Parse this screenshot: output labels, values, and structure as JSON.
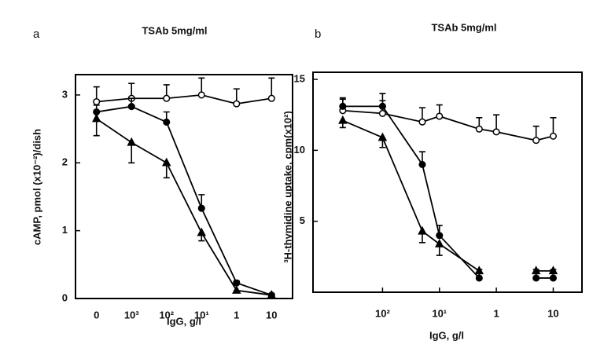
{
  "chart_data": [
    {
      "type": "line",
      "panel": "a",
      "title": "TSAb 5mg/ml",
      "x_label": "IgG, g/l",
      "y_label": "cAMP, pmol (x10⁻²)/dish",
      "categories": [
        "0",
        "10³",
        "10²",
        "10¹",
        "1",
        "10"
      ],
      "ylim": [
        0,
        3.3
      ],
      "yticks": [
        0,
        1,
        2,
        3
      ],
      "series": [
        {
          "marker": "open-circle",
          "color": "#000000",
          "error_side": "up",
          "values": [
            2.9,
            2.95,
            2.95,
            3.0,
            2.87,
            2.95
          ],
          "errors": [
            0.22,
            0.22,
            0.2,
            0.25,
            0.22,
            0.3
          ]
        },
        {
          "marker": "filled-circle",
          "color": "#000000",
          "error_side": "up",
          "values": [
            2.75,
            2.83,
            2.6,
            1.33,
            0.23,
            0.05
          ],
          "errors": [
            0.1,
            0.12,
            0.15,
            0.2,
            0.03,
            0.02
          ]
        },
        {
          "marker": "triangle",
          "color": "#000000",
          "error_side": "down",
          "values": [
            2.65,
            2.3,
            2.0,
            0.97,
            0.12,
            0.05
          ],
          "errors": [
            0.25,
            0.3,
            0.22,
            0.12,
            0.03,
            0.02
          ]
        }
      ]
    },
    {
      "type": "line",
      "panel": "b",
      "title": "TSAb 5mg/ml",
      "x_label": "IgG, g/l",
      "y_label": "³H-thymidine uptake, cpm(x10²)",
      "x": [
        0.002,
        0.01,
        0.05,
        0.1,
        0.5,
        1,
        5,
        10
      ],
      "log_x": true,
      "xlim": [
        0.0006,
        32
      ],
      "xticks": [
        {
          "value": 0.01,
          "label": "10²"
        },
        {
          "value": 0.1,
          "label": "10¹"
        },
        1,
        10
      ],
      "ylim": [
        0,
        15.5
      ],
      "yticks": [
        5,
        10,
        15
      ],
      "series": [
        {
          "marker": "open-circle",
          "color": "#000000",
          "error_side": "up",
          "values": [
            12.8,
            12.6,
            12.0,
            12.4,
            11.5,
            11.3,
            10.7,
            11.0
          ],
          "errors": [
            0.8,
            0.9,
            1.0,
            0.8,
            0.8,
            1.2,
            1.0,
            1.3
          ]
        },
        {
          "marker": "filled-circle",
          "color": "#000000",
          "error_side": "up",
          "values": [
            13.1,
            13.1,
            9.0,
            4.0,
            1.0,
            null,
            1.0,
            1.0
          ],
          "errors": [
            0.6,
            0.9,
            0.9,
            0.7,
            0.6,
            null,
            0.6,
            0.6
          ]
        },
        {
          "marker": "triangle",
          "color": "#000000",
          "error_side": "down",
          "values": [
            12.1,
            10.9,
            4.3,
            3.4,
            1.5,
            null,
            1.5,
            1.5
          ],
          "errors": [
            0.5,
            0.7,
            0.8,
            0.8,
            0.6,
            null,
            0.6,
            0.6
          ]
        }
      ]
    }
  ]
}
